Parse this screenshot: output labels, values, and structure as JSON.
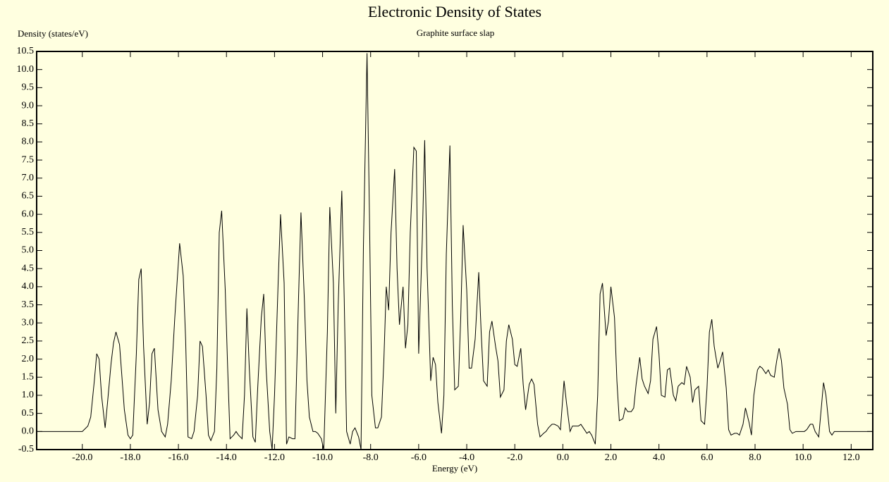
{
  "chart_data": {
    "type": "line",
    "title": "Electronic Density of States",
    "subtitle": "Graphite surface slap",
    "y_label": "Density (states/eV)",
    "x_label": "Energy (eV)",
    "color": "#000000",
    "xlim": [
      -21.9,
      12.9
    ],
    "ylim": [
      -0.5,
      10.5
    ],
    "xticks": [
      {
        "value": -20,
        "label": "-20.0"
      },
      {
        "value": -18,
        "label": "-18.0"
      },
      {
        "value": -16,
        "label": "-16.0"
      },
      {
        "value": -14,
        "label": "-14.0"
      },
      {
        "value": -12,
        "label": "-12.0"
      },
      {
        "value": -10,
        "label": "-10.0"
      },
      {
        "value": -8,
        "label": "-8.0"
      },
      {
        "value": -6,
        "label": "-6.0"
      },
      {
        "value": -4,
        "label": "-4.0"
      },
      {
        "value": -2,
        "label": "-2.0"
      },
      {
        "value": 0,
        "label": "0.0"
      },
      {
        "value": 2,
        "label": "2.0"
      },
      {
        "value": 4,
        "label": "4.0"
      },
      {
        "value": 6,
        "label": "6.0"
      },
      {
        "value": 8,
        "label": "8.0"
      },
      {
        "value": 10,
        "label": "10.0"
      },
      {
        "value": 12,
        "label": "12.0"
      }
    ],
    "yticks": [
      -0.5,
      {
        "value": 0,
        "label": "0.0"
      },
      0.5,
      {
        "value": 1,
        "label": "1.0"
      },
      1.5,
      {
        "value": 2,
        "label": "2.0"
      },
      2.5,
      {
        "value": 3,
        "label": "3.0"
      },
      3.5,
      {
        "value": 4,
        "label": "4.0"
      },
      4.5,
      {
        "value": 5,
        "label": "5.0"
      },
      5.5,
      {
        "value": 6,
        "label": "6.0"
      },
      6.5,
      {
        "value": 7,
        "label": "7.0"
      },
      7.5,
      {
        "value": 8,
        "label": "8.0"
      },
      8.5,
      {
        "value": 9,
        "label": "9.0"
      },
      9.5,
      {
        "value": 10,
        "label": "10.0"
      },
      10.5
    ],
    "x": [
      -21.9,
      -20.0,
      -19.77,
      -19.65,
      -19.5,
      -19.4,
      -19.3,
      -19.2,
      -19.05,
      -18.95,
      -18.8,
      -18.7,
      -18.6,
      -18.45,
      -18.35,
      -18.25,
      -18.1,
      -18.0,
      -17.9,
      -17.75,
      -17.65,
      -17.55,
      -17.45,
      -17.3,
      -17.2,
      -17.1,
      -17.0,
      -16.85,
      -16.7,
      -16.55,
      -16.45,
      -16.3,
      -16.15,
      -15.95,
      -15.8,
      -15.7,
      -15.6,
      -15.45,
      -15.35,
      -15.2,
      -15.1,
      -15.0,
      -14.85,
      -14.75,
      -14.65,
      -14.5,
      -14.4,
      -14.3,
      -14.2,
      -14.05,
      -13.95,
      -13.85,
      -13.7,
      -13.6,
      -13.5,
      -13.35,
      -13.25,
      -13.15,
      -13.05,
      -12.9,
      -12.8,
      -12.7,
      -12.55,
      -12.45,
      -12.35,
      -12.2,
      -12.1,
      -12.0,
      -11.85,
      -11.75,
      -11.6,
      -11.5,
      -11.4,
      -11.25,
      -11.15,
      -11.0,
      -10.9,
      -10.75,
      -10.65,
      -10.55,
      -10.4,
      -10.3,
      -10.2,
      -10.05,
      -9.95,
      -9.8,
      -9.7,
      -9.55,
      -9.45,
      -9.35,
      -9.2,
      -9.1,
      -9.0,
      -8.85,
      -8.75,
      -8.65,
      -8.5,
      -8.4,
      -8.3,
      -8.15,
      -8.05,
      -7.95,
      -7.8,
      -7.7,
      -7.55,
      -7.45,
      -7.35,
      -7.25,
      -7.15,
      -7.0,
      -6.9,
      -6.8,
      -6.65,
      -6.55,
      -6.45,
      -6.35,
      -6.2,
      -6.1,
      -6.0,
      -5.85,
      -5.75,
      -5.65,
      -5.5,
      -5.4,
      -5.3,
      -5.2,
      -5.05,
      -4.95,
      -4.85,
      -4.7,
      -4.6,
      -4.5,
      -4.35,
      -4.25,
      -4.15,
      -4.0,
      -3.9,
      -3.8,
      -3.65,
      -3.5,
      -3.4,
      -3.3,
      -3.15,
      -3.05,
      -2.95,
      -2.8,
      -2.7,
      -2.6,
      -2.45,
      -2.35,
      -2.25,
      -2.1,
      -2.0,
      -1.9,
      -1.75,
      -1.65,
      -1.55,
      -1.4,
      -1.3,
      -1.2,
      -1.05,
      -0.95,
      -0.8,
      -0.7,
      -0.6,
      -0.45,
      -0.35,
      -0.2,
      -0.1,
      0.05,
      0.15,
      0.3,
      0.4,
      0.5,
      0.65,
      0.75,
      0.85,
      1.0,
      1.1,
      1.2,
      1.35,
      1.45,
      1.55,
      1.65,
      1.8,
      1.9,
      2.0,
      2.15,
      2.25,
      2.35,
      2.5,
      2.6,
      2.7,
      2.85,
      2.95,
      3.05,
      3.2,
      3.3,
      3.4,
      3.55,
      3.65,
      3.75,
      3.9,
      4.0,
      4.1,
      4.25,
      4.35,
      4.45,
      4.6,
      4.7,
      4.8,
      4.95,
      5.05,
      5.15,
      5.3,
      5.4,
      5.5,
      5.65,
      5.75,
      5.9,
      6.0,
      6.1,
      6.2,
      6.3,
      6.45,
      6.55,
      6.65,
      6.8,
      6.9,
      7.0,
      7.15,
      7.25,
      7.35,
      7.5,
      7.6,
      7.75,
      7.85,
      7.95,
      8.1,
      8.2,
      8.3,
      8.45,
      8.55,
      8.65,
      8.8,
      8.9,
      9.0,
      9.1,
      9.2,
      9.35,
      9.45,
      9.55,
      9.7,
      9.8,
      9.9,
      10.05,
      10.15,
      10.3,
      10.4,
      10.5,
      10.65,
      10.75,
      10.85,
      10.95,
      11.1,
      11.2,
      11.3,
      12.9
    ],
    "values": [
      0,
      0,
      0.15,
      0.4,
      1.4,
      2.15,
      2.0,
      1.0,
      0.1,
      0.8,
      1.9,
      2.45,
      2.75,
      2.4,
      1.5,
      0.6,
      -0.1,
      -0.2,
      -0.1,
      2.15,
      4.2,
      4.5,
      2.35,
      0.2,
      0.8,
      2.15,
      2.3,
      0.6,
      0,
      -0.15,
      0.2,
      1.4,
      3.15,
      5.2,
      4.3,
      2.55,
      -0.15,
      -0.2,
      0,
      1.0,
      2.5,
      2.35,
      1.0,
      -0.1,
      -0.25,
      0,
      1.75,
      5.5,
      6.1,
      3.9,
      1.75,
      -0.2,
      -0.1,
      0,
      -0.1,
      -0.2,
      1.0,
      3.4,
      1.75,
      -0.15,
      -0.3,
      1.2,
      3.15,
      3.8,
      1.75,
      0,
      -0.5,
      1.0,
      4.1,
      6.0,
      4.1,
      -0.35,
      -0.15,
      -0.2,
      -0.2,
      3.7,
      6.05,
      3.5,
      1.4,
      0.4,
      0,
      0,
      -0.05,
      -0.2,
      -0.5,
      2.75,
      6.2,
      4.1,
      0.5,
      3.5,
      6.65,
      3.7,
      0,
      -0.35,
      0,
      0.1,
      -0.15,
      -0.5,
      5.1,
      10.45,
      6.05,
      1.0,
      0.1,
      0.1,
      0.4,
      1.95,
      4.0,
      3.35,
      5.5,
      7.25,
      4.5,
      2.95,
      4.0,
      2.3,
      2.95,
      5.5,
      7.85,
      7.75,
      2.15,
      5.3,
      8.05,
      4.5,
      1.4,
      2.05,
      1.85,
      0.8,
      -0.05,
      1.0,
      4.9,
      7.9,
      3.5,
      1.15,
      1.25,
      3.15,
      5.7,
      3.9,
      1.75,
      1.75,
      2.55,
      4.4,
      2.75,
      1.4,
      1.25,
      2.75,
      3.05,
      2.35,
      1.95,
      0.95,
      1.15,
      2.5,
      2.95,
      2.55,
      1.85,
      1.8,
      2.3,
      1.3,
      0.6,
      1.3,
      1.45,
      1.3,
      0.2,
      -0.15,
      -0.05,
      0,
      0.1,
      0.2,
      0.2,
      0.15,
      0.05,
      1.4,
      0.8,
      0,
      0.15,
      0.15,
      0.15,
      0.2,
      0.1,
      -0.05,
      0,
      -0.1,
      -0.35,
      1.0,
      3.8,
      4.1,
      2.65,
      3.05,
      4.0,
      3.15,
      1.4,
      0.3,
      0.35,
      0.65,
      0.55,
      0.55,
      0.65,
      1.3,
      2.05,
      1.45,
      1.25,
      1.05,
      1.4,
      2.55,
      2.9,
      2.15,
      1.0,
      0.95,
      1.7,
      1.75,
      1.0,
      0.85,
      1.25,
      1.35,
      1.3,
      1.8,
      1.5,
      0.8,
      1.15,
      1.25,
      0.3,
      0.2,
      1.2,
      2.75,
      3.1,
      2.35,
      1.75,
      1.95,
      2.2,
      1.2,
      0.05,
      -0.1,
      -0.05,
      -0.05,
      -0.1,
      0.2,
      0.65,
      0.25,
      -0.1,
      1.0,
      1.7,
      1.8,
      1.75,
      1.6,
      1.7,
      1.55,
      1.5,
      1.95,
      2.3,
      1.95,
      1.2,
      0.75,
      0.05,
      -0.05,
      0,
      0,
      0,
      0,
      0.05,
      0.2,
      0.2,
      0,
      -0.15,
      0.6,
      1.35,
      1.0,
      0,
      -0.1,
      0,
      0
    ]
  }
}
